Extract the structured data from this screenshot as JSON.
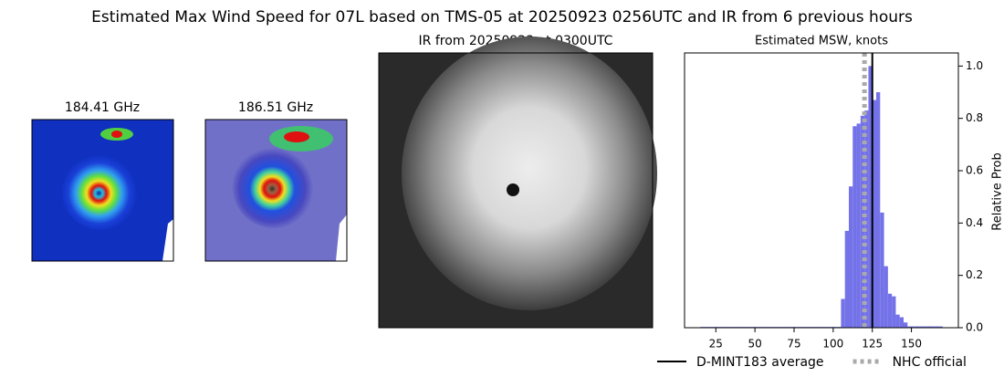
{
  "title": "Estimated Max Wind Speed for 07L based on TMS-05 at 20250923 0256UTC and IR from 6 previous hours",
  "panels": [
    {
      "title": "184.41 GHz"
    },
    {
      "title": "186.51 GHz"
    },
    {
      "title": "IR from 20250923 at 0300UTC"
    }
  ],
  "chart_data": {
    "type": "histogram",
    "title": "Estimated MSW, knots",
    "y_label": "Relative Prob",
    "color": "#7472e8",
    "bins": [
      15,
      17.5,
      20,
      22.5,
      25,
      27.5,
      30,
      32.5,
      35,
      37.5,
      40,
      42.5,
      45,
      47.5,
      50,
      52.5,
      55,
      57.5,
      60,
      62.5,
      65,
      67.5,
      70,
      72.5,
      75,
      77.5,
      80,
      82.5,
      85,
      87.5,
      90,
      92.5,
      95,
      97.5,
      100,
      102.5,
      105,
      107.5,
      110,
      112.5,
      115,
      117.5,
      120,
      122.5,
      125,
      127.5,
      130,
      132.5,
      135,
      137.5,
      140,
      142.5,
      145,
      147.5,
      150,
      152.5,
      155,
      157.5,
      160,
      162.5,
      165,
      167.5,
      170
    ],
    "values": [
      0.003,
      0.003,
      0.003,
      0.003,
      0.003,
      0.003,
      0.003,
      0.003,
      0.003,
      0.003,
      0.003,
      0.003,
      0.003,
      0.003,
      0.003,
      0.003,
      0.003,
      0.003,
      0.003,
      0.003,
      0.003,
      0.003,
      0.003,
      0.003,
      0.003,
      0.003,
      0.003,
      0.003,
      0.003,
      0.003,
      0.003,
      0.003,
      0.003,
      0.003,
      0.003,
      0.003,
      0.11,
      0.37,
      0.54,
      0.77,
      0.78,
      0.81,
      0.83,
      1.0,
      0.87,
      0.9,
      0.44,
      0.235,
      0.13,
      0.12,
      0.05,
      0.04,
      0.02,
      0.005,
      0.005,
      0.005,
      0.005,
      0.005,
      0.005,
      0.005,
      0.005,
      0.005
    ],
    "xlim": [
      5,
      180
    ],
    "xticks": [
      25,
      50,
      75,
      100,
      125,
      150
    ],
    "ylim": [
      0,
      1.05
    ],
    "yticks": [
      {
        "value": 0,
        "label": "0.0"
      },
      0.2,
      0.4,
      0.6,
      0.8,
      {
        "value": 1,
        "label": "1.0"
      }
    ],
    "lines": [
      {
        "name": "D-MINT183 average",
        "value": 125,
        "color": "#000000",
        "style": "solid"
      },
      {
        "name": "NHC official",
        "value": 120,
        "color": "#aaaaaa",
        "style": "dotted"
      }
    ],
    "legend": "bottom"
  }
}
